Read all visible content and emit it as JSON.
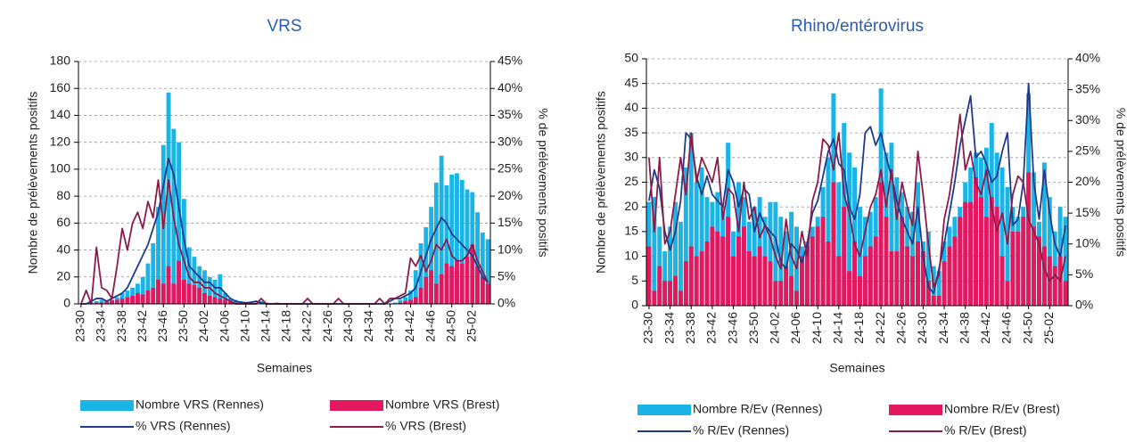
{
  "chart_data": [
    {
      "type": "combo",
      "title": "VRS",
      "categories": [
        "23-30",
        null,
        null,
        null,
        "23-34",
        null,
        null,
        null,
        "23-38",
        null,
        null,
        null,
        "23-42",
        null,
        null,
        null,
        "23-46",
        null,
        null,
        null,
        "23-50",
        null,
        null,
        null,
        "24-02",
        null,
        null,
        null,
        "24-06",
        null,
        null,
        null,
        "24-10",
        null,
        null,
        null,
        "24-14",
        null,
        null,
        null,
        "24-18",
        null,
        null,
        null,
        "24-22",
        null,
        null,
        null,
        "24-26",
        null,
        null,
        null,
        "24-30",
        null,
        null,
        null,
        "24-34",
        null,
        null,
        null,
        "24-38",
        null,
        null,
        null,
        "24-42",
        null,
        null,
        null,
        "24-46",
        null,
        null,
        null,
        "24-50",
        null,
        null,
        null,
        "25-02",
        null,
        null,
        null
      ],
      "x_label": "Semaines",
      "y_label": "Nombre de prélèvements positifs",
      "y2_label": "% de prélèvements positifs",
      "ylim": [
        0,
        180
      ],
      "yticks": [
        0,
        20,
        40,
        60,
        80,
        100,
        120,
        140,
        160,
        180
      ],
      "y2lim": [
        0,
        45
      ],
      "y2ticks": [
        {
          "value": 0,
          "label": "0%"
        },
        {
          "value": 5,
          "label": "5%"
        },
        {
          "value": 10,
          "label": "10%"
        },
        {
          "value": 15,
          "label": "15%"
        },
        {
          "value": 20,
          "label": "20%"
        },
        {
          "value": 25,
          "label": "25%"
        },
        {
          "value": 30,
          "label": "30%"
        },
        {
          "value": 35,
          "label": "35%"
        },
        {
          "value": 40,
          "label": "40%"
        },
        {
          "value": 45,
          "label": "45%"
        }
      ],
      "grid": true,
      "series": [
        {
          "name": "Nombre VRS (Rennes)",
          "type": "bar",
          "color": "#1ab4e6",
          "values": [
            0,
            0,
            1,
            2,
            3,
            2,
            3,
            5,
            8,
            10,
            12,
            15,
            20,
            30,
            45,
            72,
            118,
            157,
            130,
            120,
            78,
            42,
            35,
            28,
            25,
            20,
            18,
            22,
            8,
            4,
            3,
            2,
            1,
            1,
            1,
            2,
            1,
            0,
            1,
            0,
            0,
            0,
            0,
            0,
            0,
            0,
            0,
            0,
            0,
            0,
            0,
            0,
            0,
            0,
            0,
            0,
            0,
            0,
            0,
            0,
            0,
            1,
            3,
            5,
            10,
            25,
            45,
            57,
            72,
            90,
            110,
            88,
            96,
            97,
            92,
            85,
            83,
            68,
            53,
            48
          ]
        },
        {
          "name": "Nombre VRS (Brest)",
          "type": "bar",
          "color": "#e4185f",
          "values": [
            0,
            0,
            0,
            1,
            1,
            2,
            3,
            3,
            4,
            5,
            6,
            8,
            7,
            10,
            12,
            18,
            15,
            28,
            15,
            32,
            18,
            15,
            14,
            12,
            8,
            6,
            5,
            4,
            3,
            2,
            1,
            0,
            0,
            0,
            0,
            0,
            0,
            0,
            0,
            0,
            0,
            0,
            0,
            0,
            0,
            0,
            0,
            0,
            0,
            0,
            0,
            0,
            0,
            0,
            0,
            0,
            0,
            0,
            0,
            0,
            0,
            0,
            1,
            2,
            3,
            5,
            12,
            20,
            25,
            15,
            22,
            30,
            28,
            32,
            30,
            35,
            44,
            28,
            20,
            15
          ]
        },
        {
          "name": "% VRS (Rennes)",
          "type": "line",
          "axis": "y2",
          "color": "#1f3a8a",
          "values": [
            0,
            0,
            0.5,
            1,
            1,
            0.5,
            1,
            1.5,
            2,
            3,
            5,
            7,
            9,
            11,
            14,
            17,
            22,
            27,
            24,
            18,
            12,
            7,
            6,
            5,
            4,
            4,
            3,
            3,
            2,
            1,
            0.5,
            0.3,
            0.2,
            0.3,
            0.5,
            0.2,
            0,
            0,
            0,
            0,
            0,
            0,
            0,
            0,
            0,
            0,
            0,
            0,
            0,
            0,
            0,
            0,
            0,
            0,
            0,
            0,
            0,
            0,
            0,
            0,
            0.5,
            1,
            1,
            1.5,
            2,
            3,
            6,
            9,
            12,
            14,
            16,
            15,
            13,
            12,
            11,
            10,
            9,
            7,
            5,
            4
          ]
        },
        {
          "name": "% VRS (Brest)",
          "type": "line",
          "axis": "y2",
          "color": "#8a1b4b",
          "values": [
            0,
            2.5,
            0,
            10.5,
            3,
            2.5,
            1,
            7,
            14,
            10,
            15,
            17,
            14,
            19,
            16,
            23,
            14,
            23,
            16,
            11,
            8,
            5,
            4,
            4,
            3,
            3,
            2,
            1.5,
            1,
            0.5,
            0,
            0,
            0,
            0,
            0,
            1,
            0,
            0,
            0,
            0,
            0,
            0,
            0,
            0,
            1,
            0,
            0,
            0,
            0,
            0,
            1,
            0,
            0,
            0,
            0,
            0,
            0,
            0,
            1,
            0,
            1,
            1,
            1.5,
            2,
            8.5,
            7,
            9,
            6,
            8,
            11,
            10,
            12,
            9,
            8,
            8,
            9,
            11,
            8,
            6,
            4
          ]
        }
      ]
    },
    {
      "type": "combo",
      "title": "Rhino/entérovirus",
      "categories": [
        "23-30",
        null,
        null,
        null,
        "23-34",
        null,
        null,
        null,
        "23-38",
        null,
        null,
        null,
        "23-42",
        null,
        null,
        null,
        "23-46",
        null,
        null,
        null,
        "23-50",
        null,
        null,
        null,
        "24-02",
        null,
        null,
        null,
        "24-06",
        null,
        null,
        null,
        "24-10",
        null,
        null,
        null,
        "24-14",
        null,
        null,
        null,
        "24-18",
        null,
        null,
        null,
        "24-22",
        null,
        null,
        null,
        "24-26",
        null,
        null,
        null,
        "24-30",
        null,
        null,
        null,
        "24-34",
        null,
        null,
        null,
        "24-38",
        null,
        null,
        null,
        "24-42",
        null,
        null,
        null,
        "24-46",
        null,
        null,
        null,
        "24-50",
        null,
        null,
        null,
        "25-02",
        null,
        null,
        null
      ],
      "x_label": "Semaines",
      "y_label": "Nombre de prélèvements positifs",
      "y2_label": "% de prélèvements positifs",
      "ylim": [
        0,
        50
      ],
      "yticks": [
        0,
        5,
        10,
        15,
        20,
        25,
        30,
        35,
        40,
        45,
        50
      ],
      "y2lim": [
        0,
        40
      ],
      "y2ticks": [
        {
          "value": 0,
          "label": "0%"
        },
        {
          "value": 5,
          "label": "5%"
        },
        {
          "value": 10,
          "label": "10%"
        },
        {
          "value": 15,
          "label": "15%"
        },
        {
          "value": 20,
          "label": "20%"
        },
        {
          "value": 25,
          "label": "25%"
        },
        {
          "value": 30,
          "label": "30%"
        },
        {
          "value": 35,
          "label": "35%"
        },
        {
          "value": 40,
          "label": "40%"
        }
      ],
      "grid": true,
      "series": [
        {
          "name": "Nombre R/Ev (Rennes)",
          "type": "bar",
          "color": "#1ab4e6",
          "values": [
            21,
            22,
            16,
            11,
            16,
            21,
            17,
            28,
            35,
            25,
            28,
            22,
            21,
            23,
            20,
            33,
            15,
            25,
            22,
            17,
            20,
            22,
            18,
            21,
            21,
            18,
            15,
            19,
            16,
            12,
            13,
            16,
            18,
            24,
            30,
            43,
            25,
            37,
            31,
            28,
            20,
            18,
            19,
            22,
            44,
            31,
            33,
            26,
            23,
            20,
            19,
            25,
            13,
            15,
            8,
            7,
            13,
            16,
            18,
            20,
            25,
            28,
            31,
            30,
            32,
            37,
            31,
            28,
            24,
            20,
            18,
            20,
            43,
            27,
            17,
            29,
            22,
            15,
            20,
            18
          ]
        },
        {
          "name": "Nombre R/Ev (Brest)",
          "type": "bar",
          "color": "#e4185f",
          "values": [
            12,
            3,
            8,
            5,
            5,
            6,
            3,
            9,
            12,
            10,
            11,
            13,
            16,
            15,
            14,
            18,
            10,
            14,
            16,
            11,
            10,
            12,
            10,
            9,
            5,
            5,
            8,
            6,
            3,
            10,
            12,
            14,
            16,
            18,
            13,
            25,
            10,
            20,
            7,
            13,
            6,
            10,
            12,
            14,
            25,
            18,
            11,
            11,
            18,
            12,
            10,
            13,
            11,
            5,
            2,
            2,
            9,
            12,
            14,
            18,
            21,
            21,
            26,
            22,
            18,
            22,
            20,
            10,
            5,
            15,
            15,
            18,
            27,
            16,
            14,
            12,
            10,
            8,
            10,
            5
          ]
        },
        {
          "name": "% R/Ev (Rennes)",
          "type": "line",
          "axis": "y2",
          "color": "#1f3a8a",
          "values": [
            17,
            22,
            19,
            12,
            9,
            12,
            17,
            28,
            27,
            21,
            18,
            21,
            18,
            17,
            16,
            22,
            20,
            16,
            19,
            18,
            12,
            15,
            13,
            12,
            11,
            7,
            6,
            10,
            9,
            7,
            10,
            15,
            17,
            21,
            25,
            27,
            23,
            22,
            16,
            14,
            18,
            28,
            29,
            26,
            28,
            24,
            21,
            17,
            14,
            12,
            10,
            16,
            8,
            3,
            2,
            6,
            10,
            15,
            20,
            26,
            30,
            34,
            24,
            25,
            23,
            20,
            21,
            25,
            28,
            13,
            14,
            20,
            36,
            20,
            14,
            22,
            15,
            10,
            8,
            13
          ]
        },
        {
          "name": "% R/Ev (Brest)",
          "type": "line",
          "axis": "y2",
          "color": "#8a1b4b",
          "values": [
            24,
            12,
            24,
            10,
            12,
            18,
            24,
            18,
            28,
            20,
            24,
            22,
            20,
            24,
            14,
            19,
            18,
            12,
            20,
            14,
            16,
            11,
            13,
            11,
            8,
            6,
            14,
            8,
            6,
            12,
            8,
            17,
            20,
            27,
            26,
            22,
            28,
            18,
            15,
            10,
            8,
            12,
            16,
            18,
            22,
            16,
            22,
            14,
            20,
            16,
            13,
            25,
            18,
            10,
            3,
            5,
            14,
            18,
            24,
            31,
            22,
            25,
            20,
            18,
            22,
            16,
            12,
            15,
            10,
            18,
            21,
            20,
            14,
            12,
            10,
            6,
            4,
            5,
            4,
            8
          ]
        }
      ]
    }
  ]
}
